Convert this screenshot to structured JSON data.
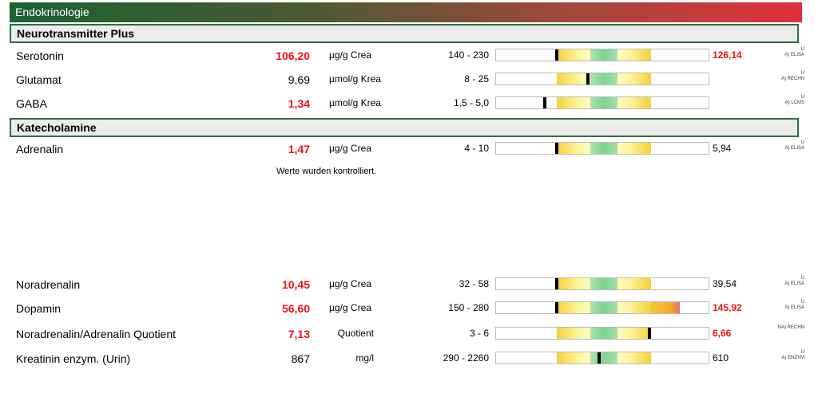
{
  "header": {
    "title": "Endokrinologie"
  },
  "sections": [
    {
      "title": "Neurotransmitter Plus",
      "rows": [
        {
          "name": "Serotonin",
          "value": "106,20",
          "value_high": true,
          "unit": "µg/g Crea",
          "ref": "140 - 230",
          "marker": 0.0,
          "over": false,
          "prev": "126,14",
          "prev_high": true,
          "method_u": "U",
          "method": "A) ELISA"
        },
        {
          "name": "Glutamat",
          "value": "9,69",
          "value_high": false,
          "unit": "µmol/g Krea",
          "ref": "8 - 25",
          "marker": 0.33,
          "over": false,
          "prev": "",
          "prev_high": false,
          "method_u": "U",
          "method": "A) RECHN"
        },
        {
          "name": "GABA",
          "value": "1,34",
          "value_high": true,
          "unit": "µmol/g Krea",
          "ref": "1,5 - 5,0",
          "marker": -0.13,
          "over": false,
          "prev": "",
          "prev_high": false,
          "method_u": "U",
          "method": "A) LCMS"
        }
      ]
    },
    {
      "title": "Katecholamine",
      "rows": [
        {
          "name": "Adrenalin",
          "value": "1,47",
          "value_high": true,
          "unit": "µg/g Crea",
          "ref": "4 - 10",
          "marker": 0.0,
          "over": false,
          "prev": "5,94",
          "prev_high": false,
          "method_u": "U",
          "method": "A) ELISA"
        }
      ],
      "note": "Werte wurden kontrolliert.",
      "rows_after_note": [
        {
          "name": "Noradrenalin",
          "value": "10,45",
          "value_high": true,
          "unit": "µg/g Crea",
          "ref": "32 - 58",
          "marker": 0.0,
          "over": false,
          "prev": "39,54",
          "prev_high": false,
          "method_u": "U",
          "method": "A) ELISA"
        },
        {
          "name": "Dopamin",
          "value": "56,60",
          "value_high": true,
          "unit": "µg/g Crea",
          "ref": "150 - 280",
          "marker": 0.0,
          "over": true,
          "prev": "145,92",
          "prev_high": true,
          "method_u": "U",
          "method": "A) ELISA"
        },
        {
          "name": "Noradrenalin/Adrenalin Quotient",
          "value": "7,13",
          "value_high": true,
          "unit": "Quotient",
          "ref": "3 - 6",
          "marker": 0.98,
          "over": false,
          "prev": "6,66",
          "prev_high": true,
          "method_u": "",
          "method": "NA) RECHN"
        },
        {
          "name": "Kreatinin  enzym. (Urin)",
          "value": "867",
          "value_high": false,
          "unit": "mg/l",
          "ref": "290 - 2260",
          "marker": 0.45,
          "over": false,
          "prev": "610",
          "prev_high": false,
          "method_u": "U",
          "method": "A) ENZYM"
        }
      ]
    }
  ]
}
